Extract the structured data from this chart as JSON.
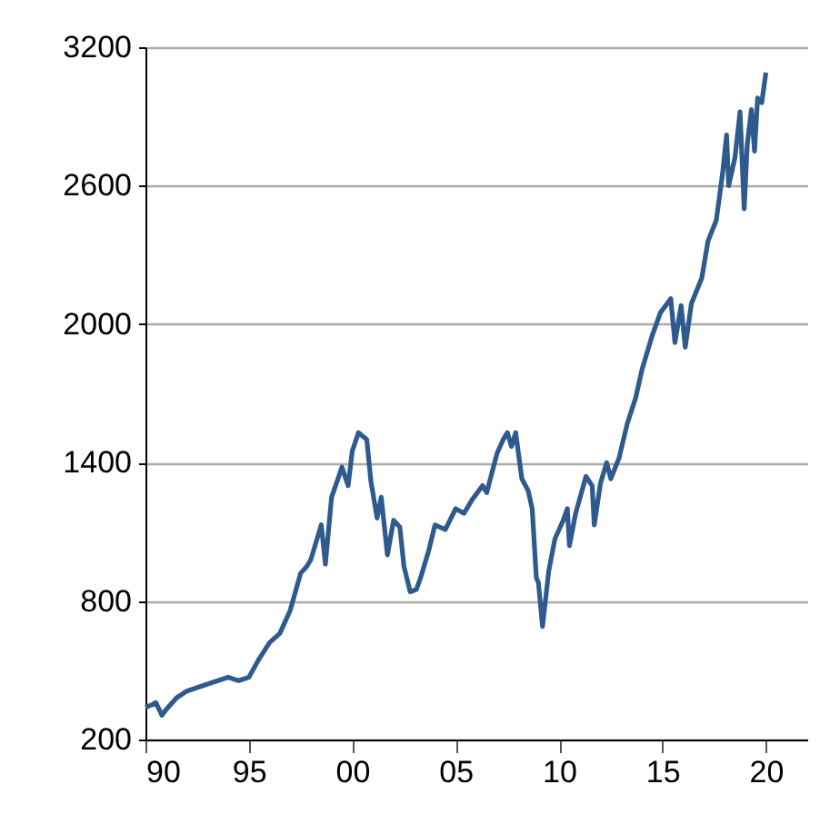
{
  "chart_data": {
    "type": "line",
    "xlim": [
      1990,
      2022
    ],
    "ylim": [
      200,
      3200
    ],
    "xticks": [
      {
        "value": 1990,
        "label": "90"
      },
      {
        "value": 1995,
        "label": "95"
      },
      {
        "value": 2000,
        "label": "00"
      },
      {
        "value": 2005,
        "label": "05"
      },
      {
        "value": 2010,
        "label": "10"
      },
      {
        "value": 2015,
        "label": "15"
      },
      {
        "value": 2020,
        "label": "20"
      }
    ],
    "yticks": [
      200,
      800,
      1400,
      2000,
      2600,
      3200
    ],
    "grid": "y",
    "line_style": "solid",
    "series": [
      {
        "color": "#2e5a8e",
        "x": [
          1990.0,
          1990.3,
          1990.5,
          1990.8,
          1991.0,
          1991.5,
          1992,
          1993,
          1994,
          1994.5,
          1995,
          1995.5,
          1996,
          1996.5,
          1997,
          1997.5,
          1997.8,
          1998,
          1998.5,
          1998.7,
          1999,
          1999.5,
          1999.8,
          2000.0,
          2000.3,
          2000.7,
          2000.9,
          2001.2,
          2001.4,
          2001.7,
          2002,
          2002.3,
          2002.5,
          2002.8,
          2003.1,
          2003.3,
          2003.7,
          2004,
          2004.5,
          2005,
          2005.4,
          2005.8,
          2006.3,
          2006.5,
          2007.0,
          2007.3,
          2007.5,
          2007.7,
          2007.9,
          2008.2,
          2008.5,
          2008.7,
          2008.9,
          2009.0,
          2009.2,
          2009.5,
          2009.8,
          2010.2,
          2010.4,
          2010.5,
          2010.8,
          2011.3,
          2011.6,
          2011.7,
          2012.0,
          2012.3,
          2012.5,
          2012.9,
          2013.3,
          2013.7,
          2014.0,
          2014.5,
          2014.9,
          2015.4,
          2015.6,
          2015.9,
          2016.1,
          2016.4,
          2016.9,
          2017.2,
          2017.6,
          2017.9,
          2018.1,
          2018.2,
          2018.5,
          2018.75,
          2018.95,
          2019.1,
          2019.3,
          2019.45,
          2019.6,
          2019.8,
          2020.0
        ],
        "values": [
          340,
          350,
          360,
          305,
          330,
          380,
          410,
          440,
          470,
          455,
          470,
          550,
          620,
          660,
          760,
          920,
          950,
          980,
          1130,
          960,
          1250,
          1380,
          1300,
          1450,
          1530,
          1500,
          1320,
          1160,
          1250,
          1000,
          1150,
          1120,
          950,
          840,
          850,
          900,
          1020,
          1130,
          1110,
          1200,
          1180,
          1240,
          1300,
          1270,
          1440,
          1500,
          1530,
          1470,
          1530,
          1330,
          1280,
          1200,
          900,
          880,
          690,
          930,
          1070,
          1150,
          1200,
          1040,
          1180,
          1340,
          1300,
          1130,
          1310,
          1400,
          1330,
          1420,
          1570,
          1680,
          1800,
          1950,
          2050,
          2110,
          1920,
          2080,
          1900,
          2090,
          2200,
          2360,
          2450,
          2650,
          2820,
          2600,
          2720,
          2920,
          2500,
          2780,
          2930,
          2750,
          2980,
          2960,
          3090
        ]
      }
    ]
  }
}
